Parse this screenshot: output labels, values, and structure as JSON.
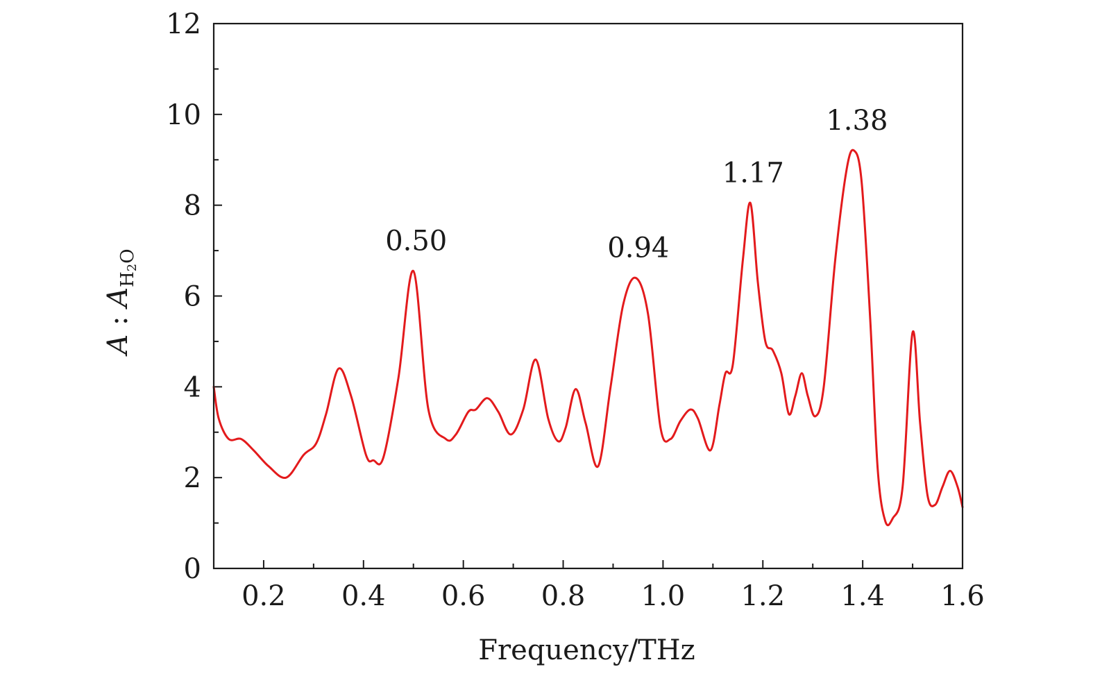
{
  "chart_data": {
    "type": "line",
    "title": "",
    "xlabel": "Frequency/THz",
    "ylabel": {
      "italic_a": "A",
      "separator": " : ",
      "italic_b": "A",
      "sub_h": "H",
      "sub_2": "2",
      "sub_o": "O"
    },
    "xlim": [
      0.1,
      1.6
    ],
    "ylim": [
      0,
      12
    ],
    "xticks": [
      0.2,
      0.4,
      0.6,
      0.8,
      1.0,
      1.2,
      1.4,
      1.6
    ],
    "xtick_labels": [
      "0.2",
      "0.4",
      "0.6",
      "0.8",
      "1.0",
      "1.2",
      "1.4",
      "1.6"
    ],
    "yticks": [
      0,
      2,
      4,
      6,
      8,
      10,
      12
    ],
    "ytick_labels": [
      "0",
      "2",
      "4",
      "6",
      "8",
      "10",
      "12"
    ],
    "grid": false,
    "series": [
      {
        "name": "A:A_H2O",
        "color": "#e31a1c",
        "x": [
          0.1,
          0.11,
          0.13,
          0.155,
          0.18,
          0.21,
          0.245,
          0.28,
          0.305,
          0.325,
          0.35,
          0.375,
          0.405,
          0.42,
          0.44,
          0.47,
          0.5,
          0.53,
          0.565,
          0.585,
          0.61,
          0.625,
          0.648,
          0.67,
          0.695,
          0.72,
          0.745,
          0.77,
          0.79,
          0.805,
          0.825,
          0.845,
          0.87,
          0.895,
          0.92,
          0.945,
          0.97,
          0.995,
          1.015,
          1.035,
          1.055,
          1.07,
          1.095,
          1.113,
          1.125,
          1.14,
          1.16,
          1.175,
          1.19,
          1.205,
          1.22,
          1.237,
          1.252,
          1.265,
          1.278,
          1.29,
          1.305,
          1.322,
          1.345,
          1.368,
          1.383,
          1.398,
          1.415,
          1.43,
          1.445,
          1.46,
          1.48,
          1.5,
          1.515,
          1.53,
          1.545,
          1.56,
          1.575,
          1.59,
          1.6
        ],
        "values": [
          4.0,
          3.3,
          2.85,
          2.85,
          2.6,
          2.25,
          2.0,
          2.5,
          2.75,
          3.4,
          4.4,
          3.8,
          2.5,
          2.38,
          2.45,
          4.2,
          6.55,
          3.5,
          2.85,
          2.95,
          3.45,
          3.5,
          3.75,
          3.45,
          2.95,
          3.5,
          4.6,
          3.3,
          2.8,
          3.1,
          3.95,
          3.2,
          2.25,
          4.0,
          5.8,
          6.4,
          5.6,
          3.1,
          2.85,
          3.25,
          3.5,
          3.3,
          2.6,
          3.6,
          4.3,
          4.5,
          6.8,
          8.05,
          6.3,
          5.0,
          4.8,
          4.3,
          3.4,
          3.8,
          4.3,
          3.8,
          3.35,
          4.0,
          6.8,
          8.8,
          9.2,
          8.5,
          5.5,
          2.2,
          1.05,
          1.1,
          1.8,
          5.2,
          3.2,
          1.6,
          1.4,
          1.8,
          2.15,
          1.8,
          1.35
        ]
      }
    ],
    "annotations": [
      {
        "text": "0.50",
        "x": 0.5,
        "y": 6.55
      },
      {
        "text": "0.94",
        "x": 0.945,
        "y": 6.4
      },
      {
        "text": "1.17",
        "x": 1.175,
        "y": 8.05
      },
      {
        "text": "1.38",
        "x": 1.383,
        "y": 9.2
      }
    ]
  }
}
